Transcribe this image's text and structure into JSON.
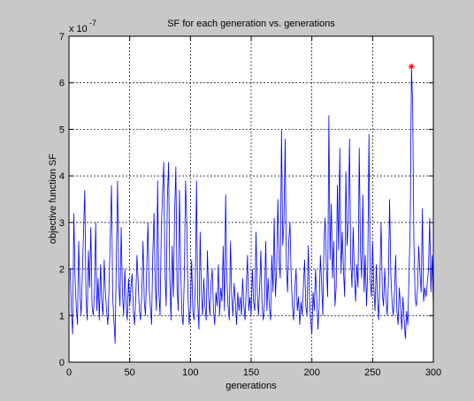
{
  "chart_data": {
    "type": "line",
    "title": "SF for each generation vs. generations",
    "xlabel": "generations",
    "ylabel": "objective function SF",
    "y_multiplier": "x 10",
    "y_exponent": "-7",
    "color": "#0000ff",
    "grid": true,
    "xlim": [
      0,
      300
    ],
    "xticks": [
      0,
      50,
      100,
      150,
      200,
      250,
      300
    ],
    "ylim": [
      0,
      7
    ],
    "yticks": [
      0,
      1,
      2,
      3,
      4,
      5,
      6,
      7
    ],
    "highlight": {
      "x": 282,
      "y": 6.35,
      "color": "#ff0000"
    },
    "x": [
      1,
      2,
      3,
      4,
      5,
      6,
      7,
      8,
      9,
      10,
      11,
      12,
      13,
      14,
      15,
      16,
      17,
      18,
      19,
      20,
      21,
      22,
      23,
      24,
      25,
      26,
      27,
      28,
      29,
      30,
      31,
      32,
      33,
      34,
      35,
      36,
      37,
      38,
      39,
      40,
      41,
      42,
      43,
      44,
      45,
      46,
      47,
      48,
      49,
      50,
      51,
      52,
      53,
      54,
      55,
      56,
      57,
      58,
      59,
      60,
      61,
      62,
      63,
      64,
      65,
      66,
      67,
      68,
      69,
      70,
      71,
      72,
      73,
      74,
      75,
      76,
      77,
      78,
      79,
      80,
      81,
      82,
      83,
      84,
      85,
      86,
      87,
      88,
      89,
      90,
      91,
      92,
      93,
      94,
      95,
      96,
      97,
      98,
      99,
      100,
      101,
      102,
      103,
      104,
      105,
      106,
      107,
      108,
      109,
      110,
      111,
      112,
      113,
      114,
      115,
      116,
      117,
      118,
      119,
      120,
      121,
      122,
      123,
      124,
      125,
      126,
      127,
      128,
      129,
      130,
      131,
      132,
      133,
      134,
      135,
      136,
      137,
      138,
      139,
      140,
      141,
      142,
      143,
      144,
      145,
      146,
      147,
      148,
      149,
      150,
      151,
      152,
      153,
      154,
      155,
      156,
      157,
      158,
      159,
      160,
      161,
      162,
      163,
      164,
      165,
      166,
      167,
      168,
      169,
      170,
      171,
      172,
      173,
      174,
      175,
      176,
      177,
      178,
      179,
      180,
      181,
      182,
      183,
      184,
      185,
      186,
      187,
      188,
      189,
      190,
      191,
      192,
      193,
      194,
      195,
      196,
      197,
      198,
      199,
      200,
      201,
      202,
      203,
      204,
      205,
      206,
      207,
      208,
      209,
      210,
      211,
      212,
      213,
      214,
      215,
      216,
      217,
      218,
      219,
      220,
      221,
      222,
      223,
      224,
      225,
      226,
      227,
      228,
      229,
      230,
      231,
      232,
      233,
      234,
      235,
      236,
      237,
      238,
      239,
      240,
      241,
      242,
      243,
      244,
      245,
      246,
      247,
      248,
      249,
      250,
      251,
      252,
      253,
      254,
      255,
      256,
      257,
      258,
      259,
      260,
      261,
      262,
      263,
      264,
      265,
      266,
      267,
      268,
      269,
      270,
      271,
      272,
      273,
      274,
      275,
      276,
      277,
      278,
      279,
      280,
      281,
      282,
      283,
      284,
      285,
      286,
      287,
      288,
      289,
      290,
      291,
      292,
      293,
      294,
      295,
      296,
      297,
      298,
      299,
      300
    ],
    "values": [
      2.0,
      1.1,
      0.6,
      3.2,
      1.8,
      1.2,
      0.8,
      2.6,
      1.5,
      1.0,
      1.9,
      2.8,
      3.7,
      1.4,
      0.9,
      2.4,
      1.6,
      2.9,
      1.2,
      1.0,
      1.5,
      3.0,
      1.1,
      1.8,
      0.9,
      2.1,
      1.3,
      1.0,
      2.2,
      1.5,
      1.1,
      0.8,
      1.6,
      2.7,
      3.8,
      1.4,
      0.9,
      0.4,
      2.2,
      3.9,
      1.7,
      1.2,
      2.9,
      1.5,
      1.0,
      2.0,
      1.3,
      0.9,
      1.8,
      1.2,
      1.6,
      1.9,
      1.1,
      0.8,
      1.4,
      2.3,
      1.7,
      1.1,
      0.9,
      1.5,
      2.6,
      1.3,
      1.0,
      2.0,
      3.0,
      1.6,
      1.2,
      0.8,
      2.3,
      3.2,
      1.7,
      1.1,
      3.9,
      1.5,
      1.0,
      2.8,
      3.6,
      4.3,
      2.0,
      1.2,
      3.5,
      4.3,
      1.8,
      0.9,
      2.5,
      1.4,
      3.2,
      4.2,
      1.6,
      1.1,
      3.7,
      2.0,
      1.0,
      0.8,
      1.9,
      3.9,
      3.0,
      1.4,
      0.8,
      1.2,
      2.2,
      1.1,
      0.9,
      1.6,
      3.9,
      1.3,
      0.7,
      2.8,
      1.5,
      1.0,
      1.8,
      1.2,
      0.9,
      2.4,
      1.4,
      1.0,
      1.7,
      2.0,
      1.1,
      0.8,
      1.5,
      1.2,
      2.1,
      1.0,
      1.6,
      1.3,
      2.5,
      1.1,
      3.6,
      1.8,
      1.2,
      0.9,
      2.6,
      1.4,
      1.0,
      1.7,
      1.3,
      0.8,
      1.5,
      1.1,
      1.4,
      1.0,
      1.8,
      1.2,
      0.9,
      1.6,
      2.3,
      1.1,
      1.4,
      1.0,
      2.0,
      1.3,
      1.1,
      2.8,
      1.5,
      1.0,
      1.6,
      2.4,
      1.2,
      0.9,
      1.3,
      2.6,
      1.1,
      1.8,
      1.2,
      0.9,
      2.3,
      1.5,
      3.1,
      1.4,
      2.0,
      3.5,
      2.2,
      1.8,
      5.0,
      2.5,
      3.0,
      4.8,
      2.1,
      1.5,
      2.6,
      3.0,
      1.8,
      1.2,
      0.9,
      1.6,
      2.0,
      1.1,
      1.4,
      0.8,
      1.3,
      1.0,
      1.6,
      2.2,
      1.2,
      1.0,
      2.5,
      1.4,
      0.9,
      0.6,
      1.5,
      1.1,
      2.0,
      1.4,
      0.7,
      1.2,
      2.3,
      1.7,
      1.0,
      2.6,
      3.1,
      2.0,
      1.4,
      5.3,
      2.2,
      3.4,
      1.8,
      2.6,
      1.2,
      1.6,
      3.8,
      2.4,
      4.6,
      1.9,
      2.8,
      2.0,
      1.4,
      4.1,
      2.5,
      3.0,
      4.8,
      2.2,
      1.6,
      2.9,
      1.9,
      1.3,
      2.1,
      1.6,
      4.6,
      2.4,
      1.8,
      3.6,
      1.5,
      2.3,
      1.2,
      2.0,
      4.9,
      1.8,
      1.4,
      2.6,
      1.6,
      1.1,
      2.1,
      1.4,
      0.9,
      1.8,
      3.0,
      1.5,
      1.2,
      2.0,
      1.4,
      1.0,
      1.7,
      3.5,
      1.9,
      1.3,
      1.0,
      1.5,
      2.3,
      1.1,
      0.8,
      1.6,
      1.2,
      0.7,
      1.4,
      0.9,
      0.5,
      1.1,
      0.8,
      1.9,
      3.0,
      6.35,
      5.5,
      2.6,
      1.4,
      1.2,
      1.6,
      2.5,
      1.9,
      1.5,
      3.3,
      1.3,
      1.6,
      1.4,
      1.7,
      2.0,
      3.1,
      1.5,
      2.3,
      1.2
    ]
  }
}
